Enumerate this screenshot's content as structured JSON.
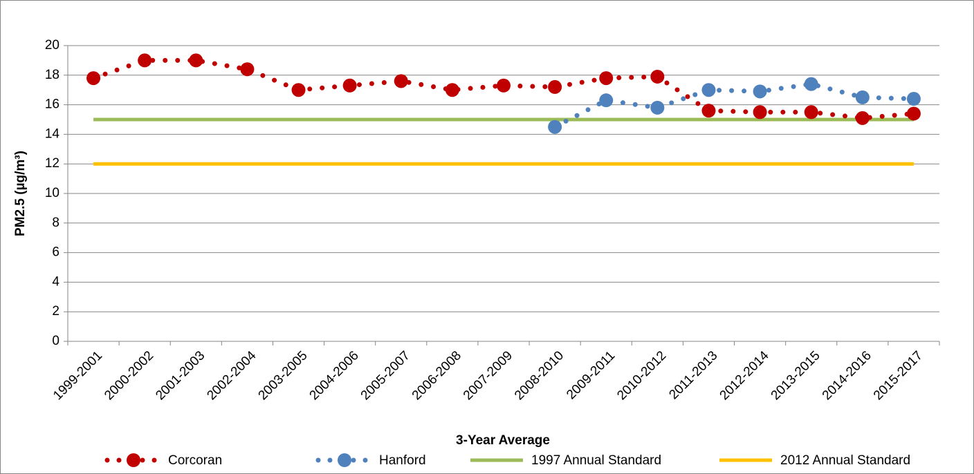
{
  "chart_data": {
    "type": "line",
    "x_label": "3-Year Average",
    "y_label": "PM2.5 (µg/m³)",
    "categories": [
      "1999-2001",
      "2000-2002",
      "2001-2003",
      "2002-2004",
      "2003-2005",
      "2004-2006",
      "2005-2007",
      "2006-2008",
      "2007-2009",
      "2008-2010",
      "2009-2011",
      "2010-2012",
      "2011-2013",
      "2012-2014",
      "2013-2015",
      "2014-2016",
      "2015-2017"
    ],
    "series": [
      {
        "name": "Corcoran",
        "color": "#c00000",
        "marker": true,
        "values": [
          17.8,
          19.0,
          19.0,
          18.4,
          17.0,
          17.3,
          17.6,
          17.0,
          17.3,
          17.2,
          17.8,
          17.9,
          15.6,
          15.5,
          15.5,
          15.1,
          15.4
        ]
      },
      {
        "name": "Hanford",
        "color": "#4f81bd",
        "marker": true,
        "values": [
          null,
          null,
          null,
          null,
          null,
          null,
          null,
          null,
          null,
          14.5,
          16.3,
          15.8,
          17.0,
          16.9,
          17.4,
          16.5,
          16.4
        ]
      },
      {
        "name": "1997 Annual Standard",
        "color": "#9bbb59",
        "marker": false,
        "values": [
          15,
          15,
          15,
          15,
          15,
          15,
          15,
          15,
          15,
          15,
          15,
          15,
          15,
          15,
          15,
          15,
          15
        ]
      },
      {
        "name": "2012 Annual Standard",
        "color": "#ffc000",
        "marker": false,
        "values": [
          12,
          12,
          12,
          12,
          12,
          12,
          12,
          12,
          12,
          12,
          12,
          12,
          12,
          12,
          12,
          12,
          12
        ]
      }
    ],
    "ylim": [
      0,
      20
    ],
    "yticks": [
      0,
      2,
      4,
      6,
      8,
      10,
      12,
      14,
      16,
      18,
      20
    ],
    "grid": true,
    "legend": "bottom"
  }
}
